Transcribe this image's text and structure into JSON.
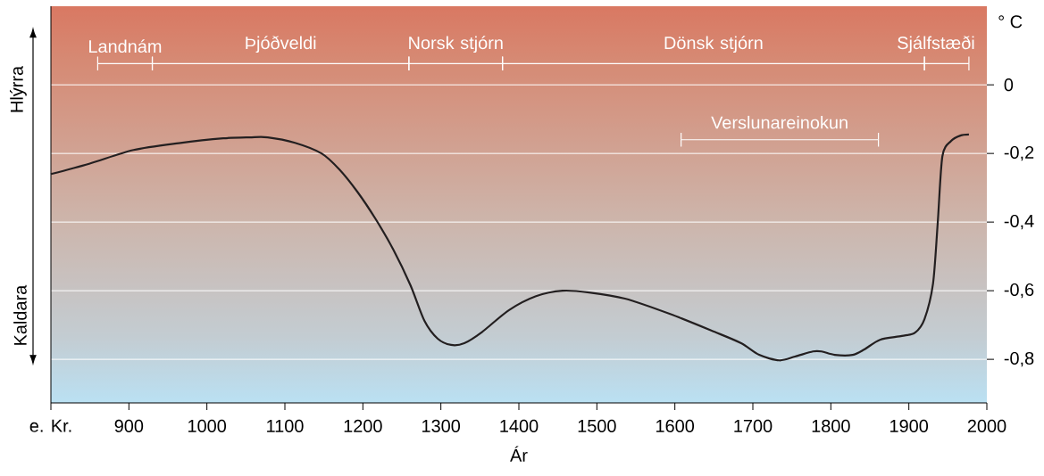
{
  "chart_data": {
    "type": "line",
    "xlabel": "Ár",
    "ylabel": "° C",
    "x": [
      800,
      849,
      906,
      964,
      1021,
      1055,
      1078,
      1113,
      1147,
      1170,
      1193,
      1216,
      1239,
      1261,
      1279,
      1296,
      1313,
      1330,
      1353,
      1387,
      1422,
      1456,
      1490,
      1536,
      1594,
      1651,
      1685,
      1708,
      1734,
      1754,
      1777,
      1788,
      1805,
      1828,
      1843,
      1863,
      1891,
      1908,
      1920,
      1931,
      1937,
      1943,
      1954,
      1966,
      1977
    ],
    "series": [
      {
        "color": "#231f20",
        "values": [
          -0.26,
          -0.23,
          -0.19,
          -0.17,
          -0.156,
          -0.153,
          -0.153,
          -0.169,
          -0.2,
          -0.247,
          -0.312,
          -0.39,
          -0.48,
          -0.584,
          -0.688,
          -0.74,
          -0.758,
          -0.753,
          -0.72,
          -0.657,
          -0.616,
          -0.6,
          -0.605,
          -0.623,
          -0.668,
          -0.72,
          -0.753,
          -0.787,
          -0.803,
          -0.792,
          -0.777,
          -0.777,
          -0.787,
          -0.787,
          -0.771,
          -0.743,
          -0.732,
          -0.722,
          -0.683,
          -0.579,
          -0.403,
          -0.208,
          -0.164,
          -0.148,
          -0.145
        ]
      },
      {
        "name": "Landnám",
        "color": "#ffffff",
        "x": [
          860,
          930
        ],
        "values": [
          0.062,
          0.062
        ],
        "errors": [
          0.02,
          0.02
        ]
      },
      {
        "name": "Þjóðveldi",
        "color": "#ffffff",
        "x": [
          930,
          1259
        ],
        "values": [
          0.062,
          0.062
        ],
        "errors": [
          0.02,
          0.02
        ]
      },
      {
        "name": "Norsk stjórn",
        "color": "#ffffff",
        "x": [
          1259,
          1379
        ],
        "values": [
          0.062,
          0.062
        ],
        "errors": [
          0.02,
          0.02
        ]
      },
      {
        "name": "Dönsk stjórn",
        "color": "#ffffff",
        "x": [
          1379,
          1920
        ],
        "values": [
          0.062,
          0.062
        ],
        "errors": [
          0.02,
          0.02
        ]
      },
      {
        "name": "Sjálfstæði",
        "color": "#ffffff",
        "x": [
          1920,
          1977
        ],
        "values": [
          0.062,
          0.062
        ],
        "errors": [
          0.02,
          0.02
        ]
      },
      {
        "name": "Verslunareinokun",
        "color": "#ffffff",
        "x": [
          1608,
          1861
        ],
        "values": [
          -0.16,
          -0.16
        ],
        "errors": [
          0.02,
          0.02
        ]
      }
    ],
    "xlim": [
      800,
      2000
    ],
    "ylim": [
      -0.927,
      0.229
    ],
    "xticks": [
      {
        "value": 800,
        "label": "e. Kr."
      },
      900,
      1000,
      1100,
      1200,
      1300,
      1400,
      1500,
      1600,
      1700,
      1800,
      1900,
      2000
    ],
    "yticks": [
      0,
      {
        "value": -0.2,
        "label": "-0,2"
      },
      {
        "value": -0.4,
        "label": "-0,4"
      },
      {
        "value": -0.6,
        "label": "-0,6"
      },
      {
        "value": -0.8,
        "label": "-0,8"
      }
    ],
    "grid": "y",
    "marker": "none",
    "line_style": "solid",
    "annotations": [
      "Hlýrra",
      "Kaldara"
    ]
  }
}
